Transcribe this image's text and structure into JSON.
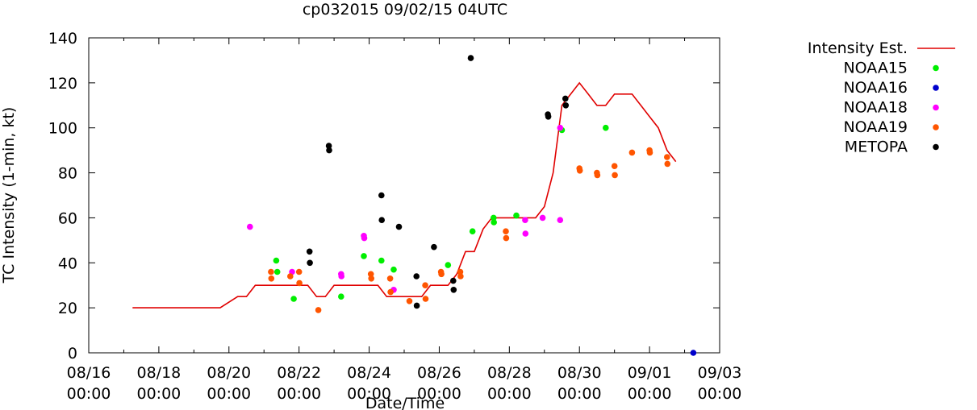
{
  "chart_data": {
    "type": "scatter",
    "title": "cp032015 09/02/15 04UTC",
    "xlabel": "Date/Time",
    "ylabel": "TC Intensity (1-min, kt)",
    "ylim": [
      0,
      140
    ],
    "yticks": [
      "0",
      "20",
      "40",
      "60",
      "80",
      "100",
      "120",
      "140"
    ],
    "xlim": [
      0,
      18
    ],
    "x_unit": "days since 08/16 00:00",
    "xticks": [
      {
        "date": "08/16",
        "time": "00:00"
      },
      {
        "date": "08/18",
        "time": "00:00"
      },
      {
        "date": "08/20",
        "time": "00:00"
      },
      {
        "date": "08/22",
        "time": "00:00"
      },
      {
        "date": "08/24",
        "time": "00:00"
      },
      {
        "date": "08/26",
        "time": "00:00"
      },
      {
        "date": "08/28",
        "time": "00:00"
      },
      {
        "date": "08/30",
        "time": "00:00"
      },
      {
        "date": "09/01",
        "time": "00:00"
      },
      {
        "date": "09/03",
        "time": "00:00"
      }
    ],
    "legend_position": "right",
    "series": [
      {
        "name": "Intensity Est.",
        "kind": "line",
        "color": "#e00000",
        "points": [
          [
            1.25,
            20
          ],
          [
            3.0,
            20
          ],
          [
            3.75,
            20
          ],
          [
            4.25,
            25
          ],
          [
            4.5,
            25
          ],
          [
            4.75,
            30
          ],
          [
            5.0,
            30
          ],
          [
            6.25,
            30
          ],
          [
            6.5,
            25
          ],
          [
            6.75,
            25
          ],
          [
            7.0,
            30
          ],
          [
            8.0,
            30
          ],
          [
            8.25,
            30
          ],
          [
            8.5,
            25
          ],
          [
            8.75,
            25
          ],
          [
            9.0,
            25
          ],
          [
            9.5,
            25
          ],
          [
            9.75,
            30
          ],
          [
            10.25,
            30
          ],
          [
            10.5,
            35
          ],
          [
            10.75,
            45
          ],
          [
            11.0,
            45
          ],
          [
            11.25,
            55
          ],
          [
            11.5,
            60
          ],
          [
            12.0,
            60
          ],
          [
            12.75,
            60
          ],
          [
            13.0,
            65
          ],
          [
            13.25,
            80
          ],
          [
            13.5,
            110
          ],
          [
            13.75,
            115
          ],
          [
            14.0,
            120
          ],
          [
            14.25,
            115
          ],
          [
            14.5,
            110
          ],
          [
            14.75,
            110
          ],
          [
            15.0,
            115
          ],
          [
            15.25,
            115
          ],
          [
            15.5,
            115
          ],
          [
            15.75,
            110
          ],
          [
            16.0,
            105
          ],
          [
            16.25,
            100
          ],
          [
            16.5,
            90
          ],
          [
            16.75,
            85
          ]
        ]
      },
      {
        "name": "NOAA15",
        "kind": "points",
        "color": "#00ee00",
        "points": [
          [
            5.35,
            41
          ],
          [
            5.38,
            36
          ],
          [
            5.85,
            24
          ],
          [
            7.2,
            25
          ],
          [
            7.85,
            43
          ],
          [
            8.35,
            41
          ],
          [
            8.7,
            37
          ],
          [
            10.25,
            39
          ],
          [
            10.95,
            54
          ],
          [
            11.55,
            60
          ],
          [
            11.56,
            58
          ],
          [
            12.2,
            61
          ],
          [
            13.5,
            99
          ],
          [
            14.75,
            100
          ]
        ]
      },
      {
        "name": "NOAA16",
        "kind": "points",
        "color": "#0000cc",
        "points": [
          [
            17.25,
            0
          ]
        ]
      },
      {
        "name": "NOAA18",
        "kind": "points",
        "color": "#ff00ff",
        "points": [
          [
            4.6,
            56
          ],
          [
            5.8,
            36
          ],
          [
            7.2,
            35
          ],
          [
            7.21,
            34
          ],
          [
            7.85,
            52
          ],
          [
            7.86,
            51
          ],
          [
            8.7,
            28
          ],
          [
            12.45,
            59
          ],
          [
            12.46,
            53
          ],
          [
            12.95,
            60
          ],
          [
            13.45,
            59
          ],
          [
            13.45,
            100
          ]
        ]
      },
      {
        "name": "NOAA19",
        "kind": "points",
        "color": "#ff5500",
        "points": [
          [
            5.2,
            36
          ],
          [
            5.21,
            33
          ],
          [
            5.75,
            34
          ],
          [
            6.0,
            36
          ],
          [
            6.01,
            31
          ],
          [
            6.55,
            19
          ],
          [
            8.05,
            35
          ],
          [
            8.06,
            33
          ],
          [
            8.6,
            33
          ],
          [
            8.61,
            27
          ],
          [
            9.15,
            23
          ],
          [
            9.6,
            30
          ],
          [
            9.61,
            24
          ],
          [
            10.05,
            36
          ],
          [
            10.06,
            35
          ],
          [
            10.6,
            36
          ],
          [
            10.61,
            34
          ],
          [
            11.9,
            54
          ],
          [
            11.91,
            51
          ],
          [
            14.0,
            82
          ],
          [
            14.01,
            81
          ],
          [
            14.5,
            80
          ],
          [
            14.51,
            79
          ],
          [
            15.0,
            83
          ],
          [
            15.01,
            79
          ],
          [
            15.5,
            89
          ],
          [
            16.0,
            90
          ],
          [
            16.01,
            89
          ],
          [
            16.5,
            87
          ],
          [
            16.51,
            84
          ]
        ]
      },
      {
        "name": "METOPA",
        "kind": "points",
        "color": "#000000",
        "points": [
          [
            6.3,
            45
          ],
          [
            6.31,
            40
          ],
          [
            6.85,
            92
          ],
          [
            6.86,
            90
          ],
          [
            8.35,
            70
          ],
          [
            8.36,
            59
          ],
          [
            8.85,
            56
          ],
          [
            9.35,
            34
          ],
          [
            9.36,
            21
          ],
          [
            9.85,
            47
          ],
          [
            10.4,
            32
          ],
          [
            10.41,
            28
          ],
          [
            10.9,
            131
          ],
          [
            13.1,
            106
          ],
          [
            13.11,
            105
          ],
          [
            13.6,
            113
          ],
          [
            13.61,
            110
          ]
        ]
      }
    ]
  }
}
